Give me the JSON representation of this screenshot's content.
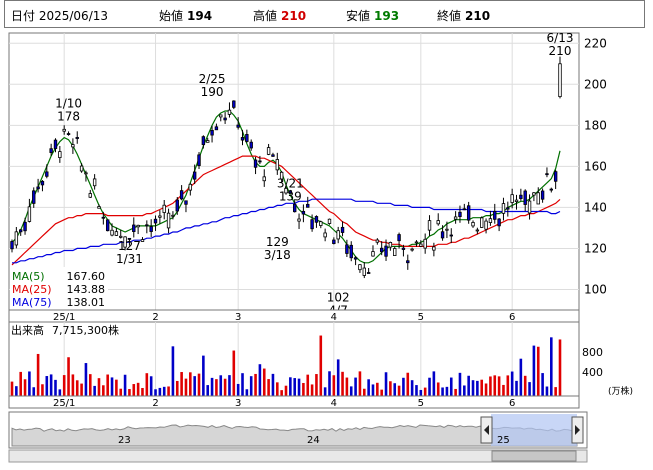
{
  "header": {
    "date_label": "日付",
    "date": "2025/06/13",
    "open_label": "始値",
    "open": "194",
    "high_label": "高値",
    "high": "210",
    "low_label": "安値",
    "low": "193",
    "close_label": "終値",
    "close": "210"
  },
  "legend": [
    {
      "label": "MA(5)",
      "value": "167.60",
      "color": "#007000"
    },
    {
      "label": "MA(25)",
      "value": "143.88",
      "color": "#e00000"
    },
    {
      "label": "MA(75)",
      "value": "138.01",
      "color": "#0000e0"
    }
  ],
  "colors": {
    "up": "#ffffff",
    "down": "#0000c8",
    "ma5": "#007000",
    "ma25": "#e00000",
    "ma75": "#0000e0",
    "vol_up": "#e00000",
    "vol_down": "#0000c8"
  },
  "x_ticks": [
    "25/1",
    "2",
    "3",
    "4",
    "5",
    "6"
  ],
  "volume": {
    "title": "出来高",
    "value": "7,715,300株",
    "unit": "(万株)",
    "ticks": [
      "800",
      "400"
    ]
  },
  "navigator": {
    "labels": [
      "23",
      "24",
      "25"
    ]
  },
  "chart_data": {
    "type": "candlestick",
    "ylim": [
      90,
      225
    ],
    "y_ticks": [
      100,
      120,
      140,
      160,
      180,
      200,
      220
    ],
    "series": [
      {
        "name": "MA(5)",
        "values": [
          123,
          125,
          129,
          134,
          140,
          145,
          150,
          155,
          160,
          165,
          169,
          172,
          174,
          173,
          170,
          166,
          161,
          156,
          151,
          146,
          141,
          137,
          134,
          131,
          130,
          129,
          128,
          129,
          130,
          131,
          131,
          131,
          131,
          131,
          132,
          133,
          134,
          135,
          138,
          142,
          146,
          152,
          158,
          164,
          170,
          175,
          180,
          184,
          186,
          187,
          187,
          185,
          182,
          177,
          171,
          166,
          162,
          160,
          160,
          162,
          163,
          161,
          157,
          151,
          146,
          142,
          139,
          137,
          136,
          135,
          134,
          133,
          132,
          131,
          129,
          127,
          125,
          122,
          119,
          116,
          114,
          113,
          113,
          114,
          116,
          118,
          120,
          121,
          121,
          121,
          121,
          121,
          122,
          122,
          123,
          124,
          126,
          127,
          129,
          130,
          132,
          133,
          134,
          134,
          134,
          134,
          135,
          135,
          135,
          136,
          136,
          137,
          137,
          138,
          140,
          141,
          142,
          143,
          143,
          144,
          146,
          148,
          150,
          152,
          154,
          159,
          167.6
        ]
      },
      {
        "name": "MA(25)",
        "values": [
          112,
          114,
          116,
          118,
          120,
          122,
          124,
          126,
          128,
          130,
          132,
          133,
          134,
          135,
          135,
          136,
          136,
          137,
          137,
          137,
          137,
          137,
          136,
          136,
          136,
          136,
          136,
          136,
          136,
          136,
          136,
          137,
          137,
          138,
          139,
          140,
          141,
          142,
          144,
          146,
          148,
          150,
          152,
          154,
          156,
          157,
          158,
          159,
          160,
          161,
          162,
          163,
          164,
          165,
          165,
          165,
          165,
          164,
          164,
          163,
          162,
          161,
          160,
          158,
          156,
          154,
          152,
          150,
          148,
          146,
          144,
          142,
          140,
          138,
          137,
          135,
          133,
          132,
          130,
          128,
          127,
          126,
          125,
          124,
          124,
          123,
          123,
          122,
          122,
          122,
          121,
          121,
          121,
          121,
          121,
          121,
          121,
          121,
          122,
          122,
          122,
          123,
          123,
          124,
          125,
          125,
          126,
          127,
          128,
          129,
          130,
          131,
          132,
          133,
          134,
          134,
          135,
          136,
          136,
          137,
          137,
          138,
          139,
          140,
          141,
          142,
          143.88
        ]
      },
      {
        "name": "MA(75)",
        "values": [
          113,
          113,
          114,
          114,
          115,
          115,
          116,
          116,
          117,
          117,
          118,
          118,
          119,
          119,
          119,
          120,
          120,
          120,
          121,
          121,
          121,
          122,
          122,
          122,
          122,
          123,
          123,
          123,
          124,
          124,
          124,
          125,
          125,
          126,
          126,
          127,
          127,
          128,
          128,
          129,
          130,
          130,
          131,
          131,
          132,
          132,
          133,
          133,
          134,
          135,
          135,
          136,
          136,
          137,
          137,
          138,
          138,
          139,
          139,
          140,
          140,
          141,
          141,
          142,
          142,
          142,
          143,
          143,
          143,
          144,
          144,
          144,
          144,
          144,
          144,
          144,
          144,
          144,
          144,
          143,
          143,
          143,
          143,
          143,
          142,
          142,
          142,
          142,
          141,
          141,
          141,
          141,
          140,
          140,
          140,
          140,
          140,
          139,
          139,
          139,
          139,
          139,
          139,
          139,
          139,
          139,
          139,
          139,
          139,
          138,
          138,
          138,
          138,
          138,
          138,
          138,
          138,
          138,
          138,
          138,
          138,
          138,
          138,
          138,
          137,
          137,
          138.01
        ]
      }
    ],
    "annotations": [
      {
        "date": "1/10",
        "value": 178,
        "pos": "above"
      },
      {
        "date": "1/31",
        "value": 127,
        "pos": "below"
      },
      {
        "date": "2/25",
        "value": 190,
        "pos": "above"
      },
      {
        "date": "3/18",
        "value": 129,
        "pos": "below"
      },
      {
        "date": "3/21",
        "value": 139,
        "pos": "above"
      },
      {
        "date": "4/7",
        "value": 102,
        "pos": "below"
      },
      {
        "date": "6/13",
        "value": 210,
        "pos": "above"
      }
    ]
  }
}
